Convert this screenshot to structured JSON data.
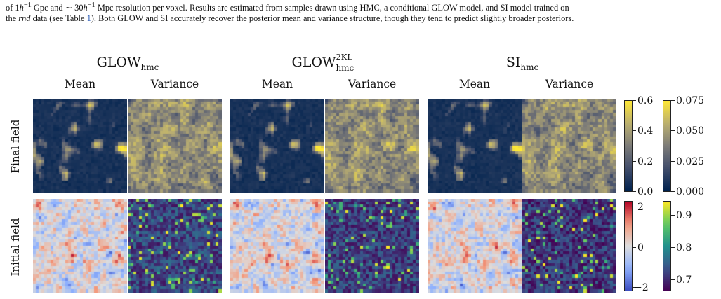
{
  "caption": {
    "line1_prefix": "of 1",
    "line1_h": "h",
    "line1_sup": "−1",
    "line1_mid": " Gpc and ∼ 30",
    "line1_h2": "h",
    "line1_sup2": "−1",
    "line1_rest": " Mpc resolution per voxel. Results are estimated from samples drawn using HMC, a conditional GLOW model, and SI model trained on",
    "line2_prefix": "the ",
    "line2_em": "rnd",
    "line2_mid": " data (see Table ",
    "line2_ref": "1",
    "line2_rest": "). Both GLOW and SI accurately recover the posterior mean and variance structure, though they tend to predict slightly broader posteriors."
  },
  "models": [
    {
      "base": "GLOW",
      "sub": "hmc",
      "sup": ""
    },
    {
      "base": "GLOW",
      "sub": "hmc",
      "sup": "2KL"
    },
    {
      "base": "SI",
      "sub": "hmc",
      "sup": ""
    }
  ],
  "columns": [
    "Mean",
    "Variance"
  ],
  "rows": [
    "Final field",
    "Initial field"
  ],
  "colorbars": {
    "final_mean": {
      "colormap": "cividis",
      "ticks": [
        "0.6",
        "0.4",
        "0.2",
        "0.0"
      ],
      "range": [
        0.0,
        0.6
      ]
    },
    "final_variance": {
      "colormap": "cividis",
      "ticks": [
        "0.075",
        "0.050",
        "0.025",
        "0.000"
      ],
      "range": [
        0.0,
        0.075
      ]
    },
    "initial_mean": {
      "colormap": "coolwarm",
      "ticks": [
        "2",
        "0",
        "−2"
      ],
      "range": [
        -2.2,
        2.2
      ]
    },
    "initial_variance": {
      "colormap": "viridis",
      "ticks": [
        "0.9",
        "0.8",
        "0.7"
      ],
      "range": [
        0.65,
        0.95
      ]
    }
  },
  "colors": {
    "cividis_low": "#00224e",
    "cividis_mid": "#7c7b78",
    "cividis_high": "#fde737",
    "coolwarm_low": "#3b4cc0",
    "coolwarm_mid": "#dddddd",
    "coolwarm_high": "#b40426",
    "viridis_low": "#440154",
    "viridis_mid": "#21918c",
    "viridis_high": "#fde725",
    "link": "#2b5cb8"
  }
}
